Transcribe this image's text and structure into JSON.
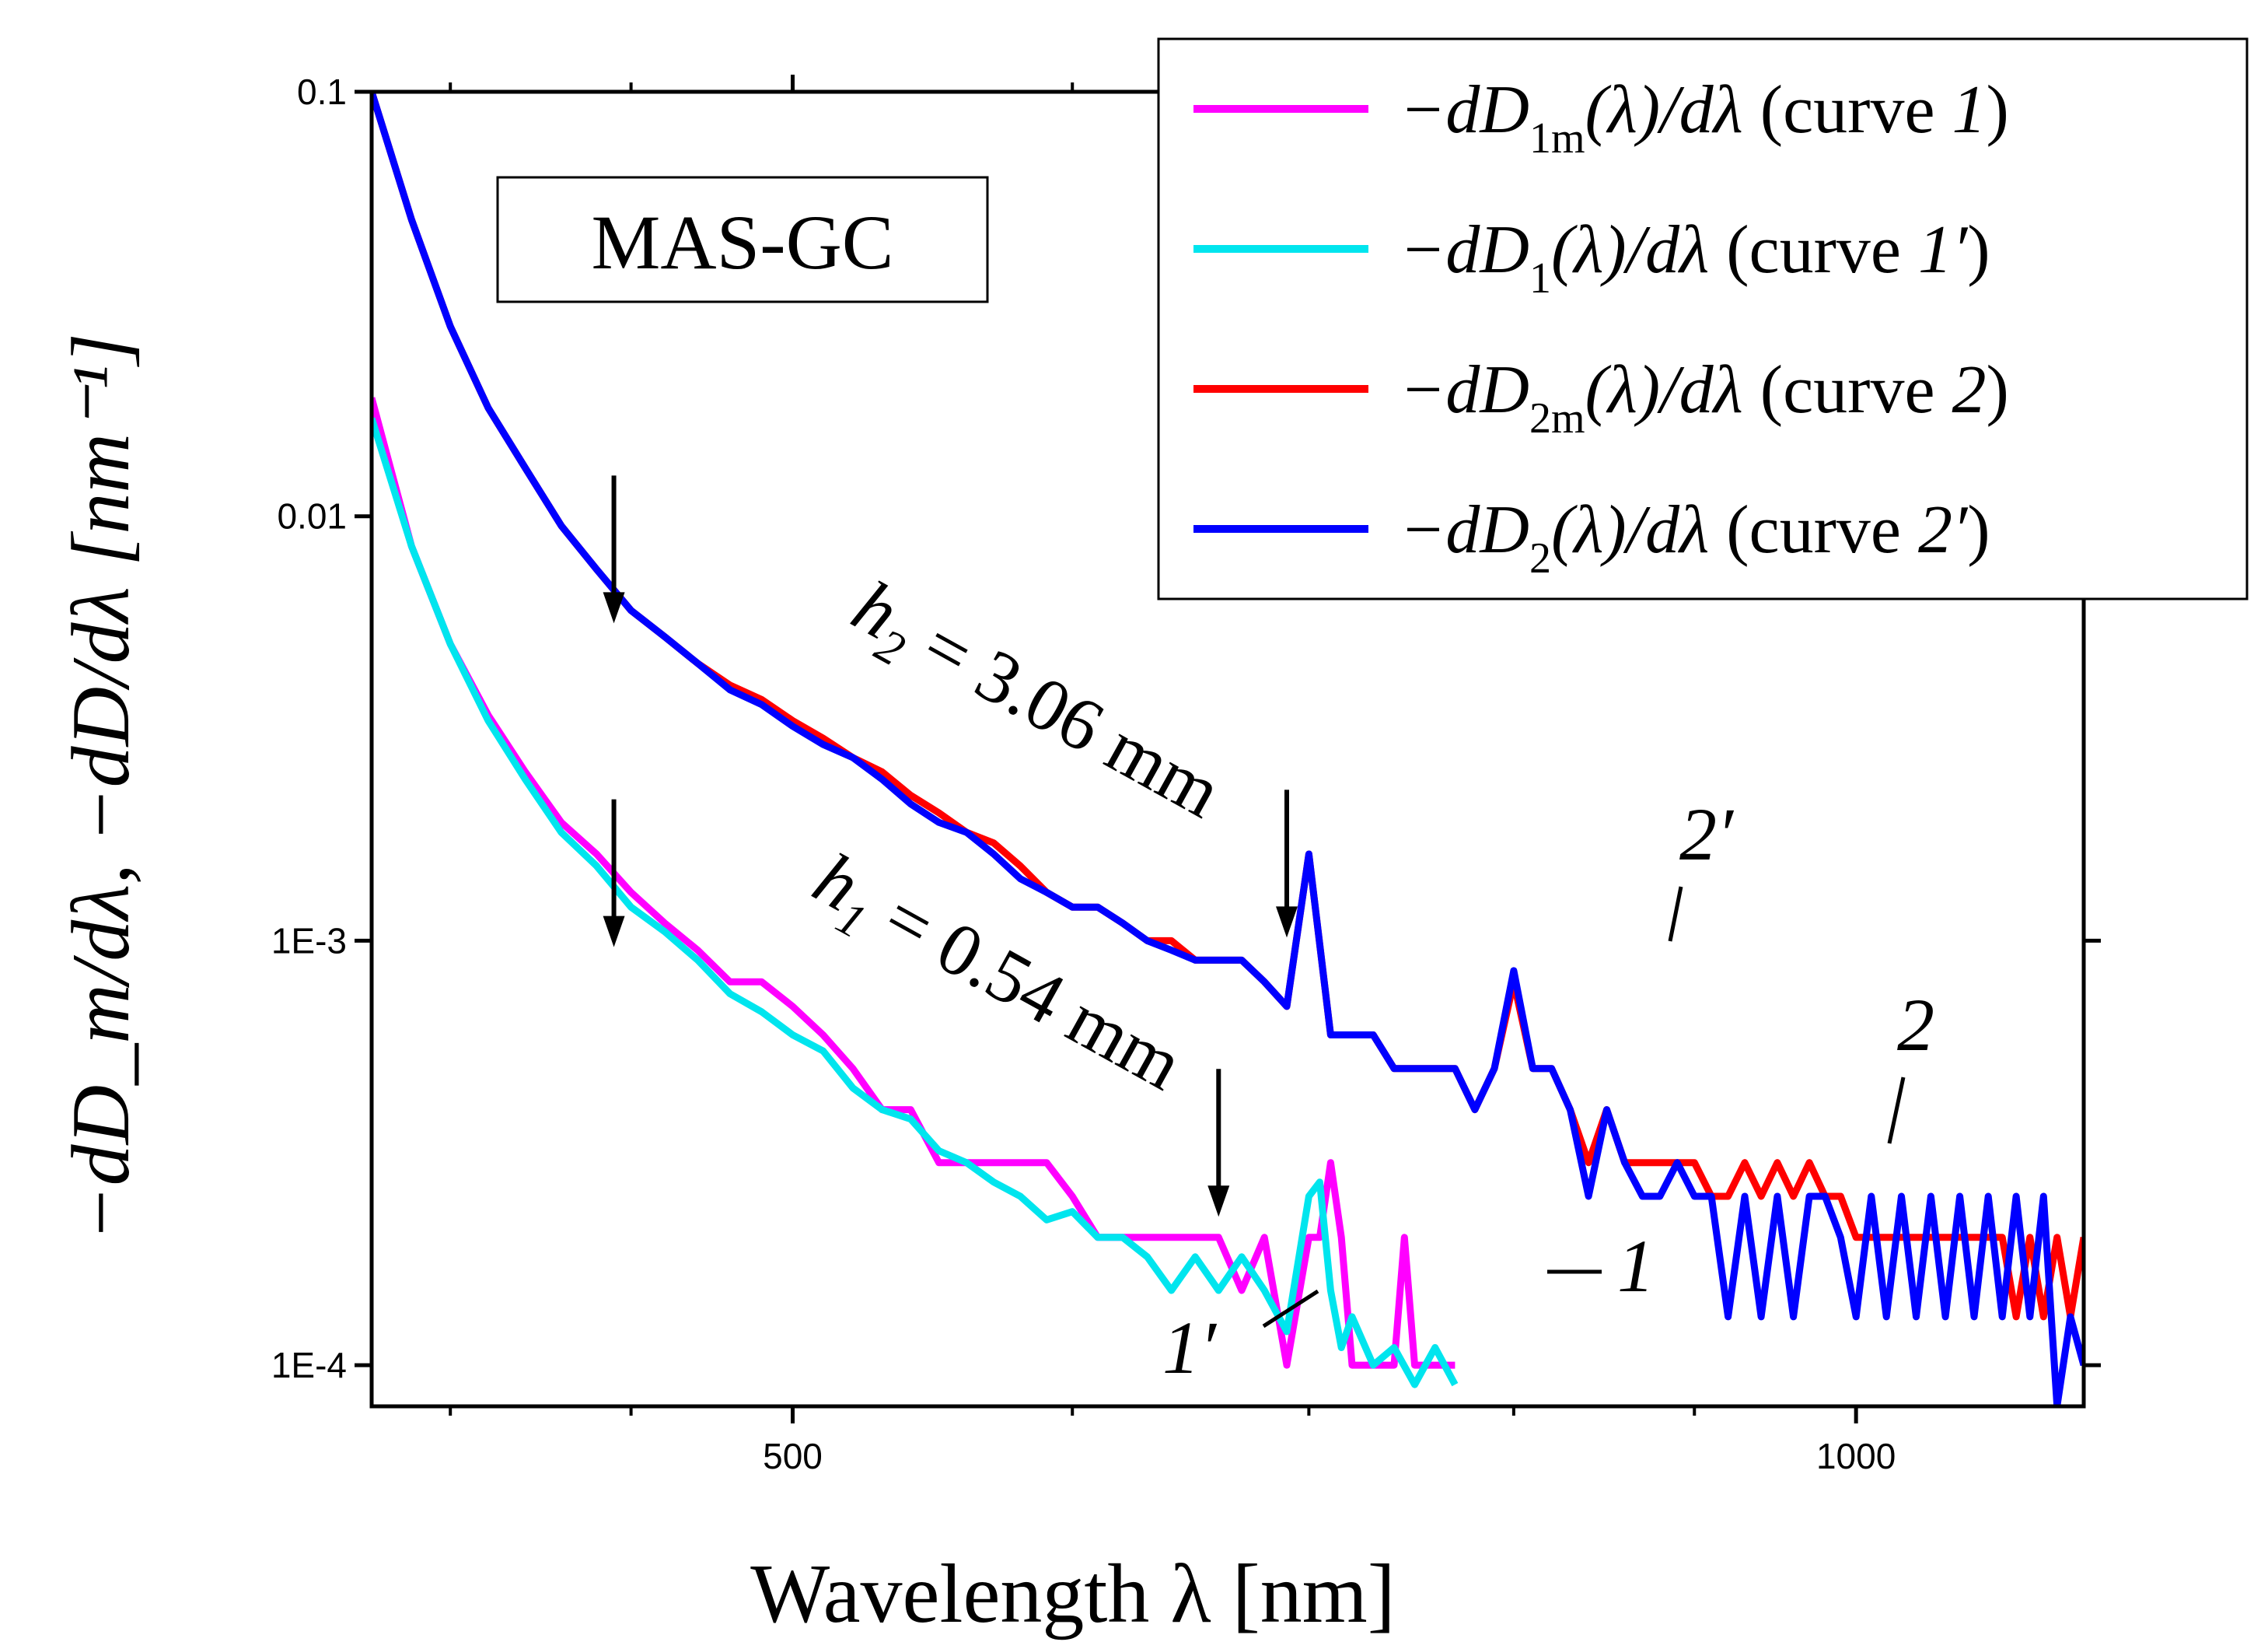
{
  "chart_data": {
    "type": "line",
    "title": "",
    "xlabel": "Wavelength λ [nm]",
    "ylabel": "−dD_m/dλ,  −dD/dλ  [nm⁻¹]",
    "y_scale": "log",
    "x_scale": "log",
    "xlim": [
      380,
      1160
    ],
    "ylim": [
      8e-05,
      0.1
    ],
    "x_ticks": [
      500,
      1000
    ],
    "x_tick_labels": [
      "500",
      "1000"
    ],
    "y_ticks": [
      0.0001,
      0.001,
      0.01,
      0.1
    ],
    "y_tick_labels": [
      "1E-4",
      "1E-3",
      "0.01",
      "0.1"
    ],
    "annotations": {
      "sample_box": "MAS-GC",
      "h2_label": "h",
      "h2_sub": "2",
      "h2_value": " = 3.06 mm",
      "h1_label": "h",
      "h1_sub": "1",
      "h1_value": " = 0.54 mm",
      "label_1": "1",
      "label_1p": "1′",
      "label_2": "2",
      "label_2p": "2′"
    },
    "arrows_at": [
      {
        "x": 445,
        "y": 0.0055
      },
      {
        "x": 445,
        "y": 0.00095
      },
      {
        "x": 660,
        "y": 0.00022
      },
      {
        "x": 690,
        "y": 0.001
      }
    ],
    "legend": {
      "position": "top-right",
      "entries": [
        {
          "prefix": "−dD",
          "sub": "1m",
          "suffix": "(λ)/dλ",
          "curve_text": "(curve ",
          "curve_id": "1",
          "close": ")",
          "color": "#ff00ff"
        },
        {
          "prefix": "−dD",
          "sub": "1",
          "suffix": "(λ)/dλ",
          "curve_text": "(curve ",
          "curve_id": "1′",
          "close": ")",
          "color": "#00e5ee"
        },
        {
          "prefix": "−dD",
          "sub": "2m",
          "suffix": "(λ)/dλ",
          "curve_text": "(curve ",
          "curve_id": "2",
          "close": ")",
          "color": "#ff0000"
        },
        {
          "prefix": "−dD",
          "sub": "2",
          "suffix": "(λ)/dλ",
          "curve_text": "(curve ",
          "curve_id": "2′",
          "close": ")",
          "color": "#0000ff"
        }
      ]
    },
    "series": [
      {
        "name": "−dD1m(λ)/dλ (curve 1)",
        "color": "#ff00ff",
        "x": [
          380,
          390,
          400,
          410,
          420,
          430,
          440,
          450,
          460,
          470,
          480,
          490,
          500,
          510,
          520,
          530,
          540,
          550,
          560,
          570,
          580,
          590,
          600,
          610,
          615,
          620,
          630,
          640,
          650,
          660,
          670,
          680,
          690,
          700,
          705,
          710,
          715,
          720,
          730,
          740,
          745,
          750,
          760,
          770
        ],
        "values": [
          0.019,
          0.0085,
          0.005,
          0.0034,
          0.0025,
          0.0019,
          0.0016,
          0.0013,
          0.0011,
          0.00095,
          0.0008,
          0.0008,
          0.0007,
          0.0006,
          0.0005,
          0.0004,
          0.0004,
          0.0003,
          0.0003,
          0.0003,
          0.0003,
          0.0003,
          0.00025,
          0.0002,
          0.0002,
          0.0002,
          0.0002,
          0.0002,
          0.0002,
          0.0002,
          0.00015,
          0.0002,
          0.0001,
          0.0002,
          0.0002,
          0.0003,
          0.0002,
          0.0001,
          0.0001,
          0.0001,
          0.0002,
          0.0001,
          0.0001,
          0.0001
        ]
      },
      {
        "name": "−dD1(λ)/dλ (curve 1′)",
        "color": "#00e5ee",
        "x": [
          380,
          390,
          400,
          410,
          420,
          430,
          440,
          450,
          460,
          470,
          480,
          490,
          500,
          510,
          520,
          530,
          540,
          550,
          560,
          570,
          580,
          590,
          600,
          610,
          620,
          630,
          640,
          650,
          660,
          670,
          680,
          690,
          700,
          705,
          710,
          715,
          720,
          730,
          740,
          750,
          760,
          770
        ],
        "values": [
          0.017,
          0.0085,
          0.005,
          0.0033,
          0.0024,
          0.0018,
          0.0015,
          0.0012,
          0.00105,
          0.0009,
          0.00075,
          0.00068,
          0.0006,
          0.00055,
          0.00045,
          0.0004,
          0.00038,
          0.00032,
          0.0003,
          0.00027,
          0.00025,
          0.00022,
          0.00023,
          0.0002,
          0.0002,
          0.00018,
          0.00015,
          0.00018,
          0.00015,
          0.00018,
          0.00015,
          0.00012,
          0.00025,
          0.00027,
          0.00015,
          0.00011,
          0.00013,
          0.0001,
          0.00011,
          9e-05,
          0.00011,
          9e-05
        ]
      },
      {
        "name": "−dD2m(λ)/dλ (curve 2)",
        "color": "#ff0000",
        "x": [
          380,
          390,
          400,
          410,
          420,
          430,
          440,
          450,
          460,
          470,
          480,
          490,
          500,
          510,
          520,
          530,
          540,
          550,
          560,
          570,
          580,
          590,
          600,
          610,
          620,
          630,
          640,
          650,
          660,
          670,
          680,
          690,
          700,
          710,
          720,
          730,
          740,
          750,
          760,
          770,
          780,
          790,
          800,
          810,
          820,
          830,
          840,
          850,
          860,
          870,
          880,
          890,
          900,
          910,
          920,
          930,
          940,
          950,
          960,
          970,
          980,
          990,
          1000,
          1010,
          1020,
          1030,
          1040,
          1050,
          1060,
          1070,
          1080,
          1090,
          1100,
          1110,
          1120,
          1130,
          1140,
          1150,
          1160
        ],
        "values": [
          0.1,
          0.05,
          0.028,
          0.018,
          0.013,
          0.0095,
          0.0075,
          0.006,
          0.0052,
          0.0045,
          0.004,
          0.0037,
          0.0033,
          0.003,
          0.0027,
          0.0025,
          0.0022,
          0.002,
          0.0018,
          0.0017,
          0.0015,
          0.0013,
          0.0012,
          0.0012,
          0.0011,
          0.001,
          0.001,
          0.0009,
          0.0009,
          0.0009,
          0.0008,
          0.0007,
          0.0016,
          0.0006,
          0.0006,
          0.0006,
          0.0005,
          0.0005,
          0.0005,
          0.0005,
          0.0004,
          0.0005,
          0.0008,
          0.0005,
          0.0005,
          0.0004,
          0.0003,
          0.0004,
          0.0003,
          0.0003,
          0.0003,
          0.0003,
          0.0003,
          0.00025,
          0.00025,
          0.0003,
          0.00025,
          0.0003,
          0.00025,
          0.0003,
          0.00025,
          0.00025,
          0.0002,
          0.0002,
          0.0002,
          0.0002,
          0.0002,
          0.0002,
          0.0002,
          0.0002,
          0.0002,
          0.0002,
          0.0002,
          0.00013,
          0.0002,
          0.00013,
          0.0002,
          0.00013,
          0.0002
        ]
      },
      {
        "name": "−dD2(λ)/dλ (curve 2′)",
        "color": "#0000ff",
        "x": [
          380,
          390,
          400,
          410,
          420,
          430,
          440,
          450,
          460,
          470,
          480,
          490,
          500,
          510,
          520,
          530,
          540,
          550,
          560,
          570,
          580,
          590,
          600,
          610,
          620,
          630,
          640,
          650,
          660,
          670,
          680,
          690,
          700,
          710,
          720,
          730,
          740,
          750,
          760,
          770,
          780,
          790,
          800,
          810,
          820,
          830,
          840,
          850,
          860,
          870,
          880,
          890,
          900,
          910,
          920,
          930,
          940,
          950,
          960,
          970,
          980,
          990,
          1000,
          1010,
          1020,
          1030,
          1040,
          1050,
          1060,
          1070,
          1080,
          1090,
          1100,
          1110,
          1120,
          1130,
          1140,
          1150,
          1160
        ],
        "values": [
          0.1,
          0.05,
          0.028,
          0.018,
          0.013,
          0.0095,
          0.0075,
          0.006,
          0.0052,
          0.0045,
          0.0039,
          0.0036,
          0.0032,
          0.0029,
          0.0027,
          0.0024,
          0.0021,
          0.0019,
          0.0018,
          0.0016,
          0.0014,
          0.0013,
          0.0012,
          0.0012,
          0.0011,
          0.001,
          0.00095,
          0.0009,
          0.0009,
          0.0009,
          0.0008,
          0.0007,
          0.0016,
          0.0006,
          0.0006,
          0.0006,
          0.0005,
          0.0005,
          0.0005,
          0.0005,
          0.0004,
          0.0005,
          0.00085,
          0.0005,
          0.0005,
          0.0004,
          0.00025,
          0.0004,
          0.0003,
          0.00025,
          0.00025,
          0.0003,
          0.00025,
          0.00025,
          0.00013,
          0.00025,
          0.00013,
          0.00025,
          0.00013,
          0.00025,
          0.00025,
          0.0002,
          0.00013,
          0.00025,
          0.00013,
          0.00025,
          0.00013,
          0.00025,
          0.00013,
          0.00025,
          0.00013,
          0.00025,
          0.00013,
          0.00025,
          0.00013,
          0.00025,
          8e-05,
          0.00013,
          0.0001
        ]
      }
    ]
  }
}
